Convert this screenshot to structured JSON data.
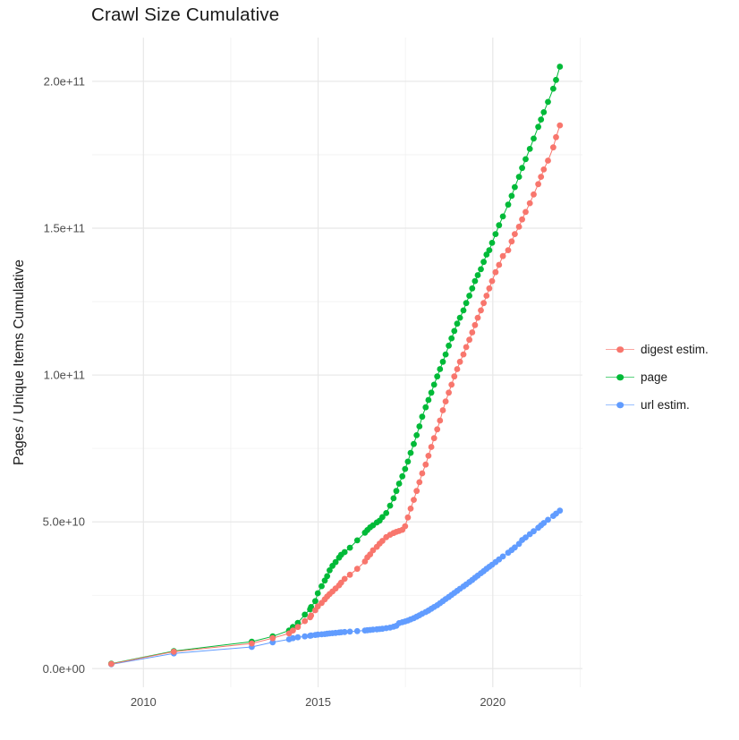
{
  "title": "Crawl Size Cumulative",
  "chart_data": {
    "type": "line",
    "subtype": "scatter-line cumulative time series (ggplot style)",
    "title": "Crawl Size Cumulative",
    "xlabel": "",
    "ylabel": "Pages / Unique Items Cumulative",
    "grid": true,
    "legend_position": "right-center",
    "background": "#ffffff",
    "grid_major_color": "#e8e8e8",
    "grid_minor_color": "#f1f1f1",
    "tick_label_color": "#4d4d4d",
    "x_ticks": [
      {
        "v": 2010,
        "label": "2010"
      },
      {
        "v": 2015,
        "label": "2015"
      },
      {
        "v": 2020,
        "label": "2020"
      }
    ],
    "x_minor": [
      2012.5,
      2017.5,
      2022.5
    ],
    "y_ticks": [
      {
        "v": 0,
        "label": "0.0e+00"
      },
      {
        "v": 50,
        "label": "5.0e+10"
      },
      {
        "v": 100,
        "label": "1.0e+11"
      },
      {
        "v": 150,
        "label": "1.5e+11"
      },
      {
        "v": 200,
        "label": "2.0e+11"
      }
    ],
    "y_minor": [
      25,
      75,
      125,
      175
    ],
    "values_unit": "billions (1e9) of pages / unique items",
    "xlim": [
      2008.85,
      2022.6
    ],
    "ylim_billions": [
      -10,
      215
    ],
    "x": [
      2009.08,
      2010.87,
      2013.1,
      2013.7,
      2014.17,
      2014.28,
      2014.42,
      2014.62,
      2014.77,
      2014.8,
      2014.92,
      2014.99,
      2015.1,
      2015.19,
      2015.26,
      2015.33,
      2015.41,
      2015.5,
      2015.6,
      2015.66,
      2015.76,
      2015.91,
      2016.12,
      2016.34,
      2016.41,
      2016.49,
      2016.57,
      2016.68,
      2016.76,
      2016.84,
      2016.95,
      2017.06,
      2017.16,
      2017.24,
      2017.32,
      2017.41,
      2017.49,
      2017.57,
      2017.65,
      2017.74,
      2017.82,
      2017.9,
      2017.98,
      2018.08,
      2018.16,
      2018.24,
      2018.32,
      2018.41,
      2018.49,
      2018.57,
      2018.65,
      2018.74,
      2018.82,
      2018.9,
      2018.98,
      2019.06,
      2019.16,
      2019.24,
      2019.33,
      2019.41,
      2019.49,
      2019.57,
      2019.66,
      2019.74,
      2019.82,
      2019.9,
      2019.98,
      2020.08,
      2020.18,
      2020.29,
      2020.44,
      2020.54,
      2020.63,
      2020.75,
      2020.84,
      2020.94,
      2021.06,
      2021.17,
      2021.3,
      2021.38,
      2021.46,
      2021.58,
      2021.73,
      2021.81,
      2021.92
    ],
    "series": [
      {
        "name": "digest estim.",
        "color": "#F8766D",
        "values": [
          1.6,
          5.8,
          8.6,
          10.4,
          12.0,
          13.0,
          14.2,
          16.2,
          17.5,
          18.1,
          19.9,
          21.2,
          22.4,
          23.6,
          24.6,
          25.4,
          26.3,
          27.3,
          28.4,
          29.3,
          30.6,
          32.0,
          34.0,
          36.5,
          37.9,
          38.9,
          40.3,
          41.5,
          42.6,
          43.5,
          44.8,
          45.6,
          46.2,
          46.6,
          46.9,
          47.3,
          48.5,
          51.5,
          54.5,
          57.5,
          60.5,
          63.5,
          66.5,
          69.5,
          72.5,
          75.5,
          78.5,
          81.5,
          84.5,
          88.0,
          91.0,
          94.0,
          96.7,
          99.5,
          102.0,
          104.5,
          107.0,
          109.5,
          112.0,
          114.5,
          117.0,
          119.5,
          122.0,
          124.5,
          127.0,
          129.5,
          132.0,
          135.0,
          137.5,
          140.5,
          142.5,
          145.5,
          148.0,
          150.5,
          153.0,
          155.5,
          158.5,
          161.5,
          165.0,
          167.5,
          170.0,
          173.0,
          177.5,
          181.0,
          185.0
        ]
      },
      {
        "name": "page",
        "color": "#00BA38",
        "values": [
          1.7,
          6.0,
          9.2,
          11.0,
          13.0,
          14.2,
          15.6,
          18.4,
          20.2,
          21.0,
          23.0,
          25.7,
          28.1,
          30.0,
          31.5,
          33.5,
          35.0,
          36.3,
          37.8,
          38.8,
          39.7,
          41.2,
          43.7,
          46.3,
          47.2,
          48.1,
          48.8,
          49.8,
          50.4,
          51.6,
          53.0,
          55.5,
          58.0,
          60.5,
          63.0,
          65.5,
          68.0,
          70.5,
          73.5,
          76.5,
          79.5,
          82.5,
          85.8,
          89.0,
          91.5,
          94.0,
          96.7,
          99.5,
          102.0,
          104.5,
          107.0,
          110.0,
          112.5,
          115.0,
          117.5,
          119.5,
          122.0,
          124.5,
          127.0,
          129.5,
          132.0,
          134.0,
          136.0,
          138.5,
          141.0,
          142.5,
          145.0,
          148.0,
          151.0,
          154.0,
          158.0,
          161.0,
          164.0,
          167.5,
          170.5,
          173.5,
          177.0,
          180.5,
          184.5,
          187.0,
          189.5,
          193.0,
          197.5,
          200.5,
          205.0
        ]
      },
      {
        "name": "url estim.",
        "color": "#619CFF",
        "values": [
          1.5,
          5.2,
          7.4,
          9.0,
          10.0,
          10.4,
          10.7,
          11.0,
          11.2,
          11.3,
          11.5,
          11.6,
          11.7,
          11.8,
          11.9,
          12.0,
          12.1,
          12.2,
          12.3,
          12.4,
          12.5,
          12.6,
          12.8,
          13.0,
          13.1,
          13.2,
          13.3,
          13.4,
          13.5,
          13.6,
          13.8,
          14.0,
          14.3,
          14.6,
          15.5,
          15.8,
          16.1,
          16.4,
          16.8,
          17.2,
          17.7,
          18.2,
          18.7,
          19.3,
          19.8,
          20.4,
          21.0,
          21.6,
          22.3,
          23.0,
          23.7,
          24.4,
          25.1,
          25.8,
          26.5,
          27.2,
          28.0,
          28.7,
          29.5,
          30.2,
          31.0,
          31.7,
          32.5,
          33.2,
          34.0,
          34.7,
          35.4,
          36.3,
          37.2,
          38.2,
          39.5,
          40.4,
          41.3,
          42.5,
          43.8,
          44.7,
          45.8,
          46.8,
          48.0,
          48.8,
          49.6,
          50.7,
          52.0,
          52.8,
          53.8
        ]
      }
    ]
  }
}
